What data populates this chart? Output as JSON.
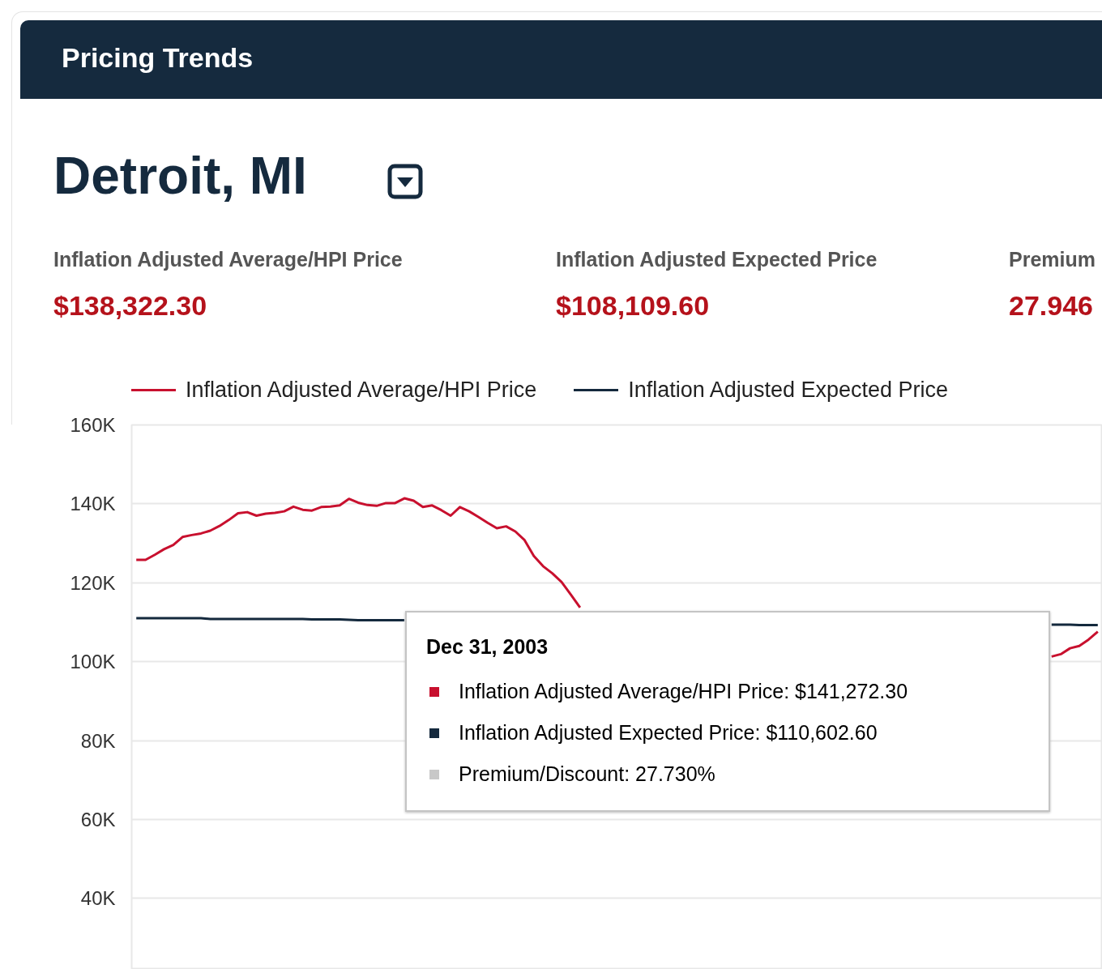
{
  "chart_data": {
    "type": "line",
    "title": "Pricing Trends",
    "subtitle": "Detroit, MI",
    "annotations": [
      "Inflation Adjusted Average/HPI Price",
      "$138,322.30",
      "Inflation Adjusted Expected Price",
      "$108,109.60",
      "Premium",
      "27.946",
      "Dec 31, 2003",
      "Inflation Adjusted Average/HPI Price: $141,272.30",
      "Inflation Adjusted Expected Price: $110,602.60",
      "Premium/Discount: 27.730%"
    ],
    "categories": [
      null,
      null,
      null,
      null,
      null,
      null,
      null,
      null,
      null,
      null,
      null,
      null,
      null,
      null,
      null,
      null,
      null,
      null,
      null,
      null,
      null,
      null,
      null,
      null,
      null,
      null,
      null,
      null,
      null,
      null,
      null,
      null,
      null,
      null,
      null,
      null,
      null,
      null,
      null,
      null,
      null,
      null,
      null,
      null,
      null,
      null,
      null,
      null,
      null,
      null,
      null,
      null,
      null,
      null,
      null,
      null,
      null,
      null,
      null,
      null,
      null,
      null,
      null,
      null,
      null,
      null,
      null,
      null,
      null,
      null,
      null,
      null,
      null,
      null,
      null,
      null,
      null,
      null,
      null,
      null,
      null,
      null,
      null,
      null,
      null,
      null,
      null,
      null,
      null,
      null,
      null,
      null,
      null,
      null,
      null,
      null,
      null,
      null,
      null,
      null,
      null,
      null,
      null,
      null,
      null
    ],
    "series": [
      {
        "name": "Inflation Adjusted Average/HPI Price",
        "color": "#c8102e",
        "values": [
          125800,
          125800,
          127100,
          128500,
          129600,
          131600,
          132100,
          132500,
          133200,
          134400,
          135900,
          137600,
          137900,
          137000,
          137500,
          137700,
          138100,
          139300,
          138500,
          138300,
          139200,
          139300,
          139600,
          141272.3,
          140300,
          139700,
          139500,
          140200,
          140200,
          141400,
          140800,
          139200,
          139600,
          138400,
          137000,
          139200,
          138100,
          136700,
          135200,
          133800,
          134300,
          133000,
          130800,
          126800,
          124200,
          122400,
          120200,
          117000,
          113700,
          null,
          null,
          null,
          null,
          null,
          null,
          null,
          null,
          null,
          null,
          null,
          null,
          null,
          null,
          null,
          null,
          null,
          null,
          null,
          null,
          null,
          null,
          null,
          null,
          null,
          null,
          null,
          null,
          null,
          null,
          null,
          null,
          null,
          null,
          null,
          null,
          null,
          null,
          null,
          null,
          null,
          null,
          null,
          null,
          null,
          null,
          null,
          null,
          null,
          null,
          101300,
          101900,
          103400,
          104000,
          105600,
          107600
        ]
      },
      {
        "name": "Inflation Adjusted Expected Price",
        "color": "#14293d",
        "values": [
          111000,
          111000,
          111000,
          111000,
          111000,
          111000,
          111000,
          111000,
          110800,
          110800,
          110800,
          110800,
          110800,
          110800,
          110800,
          110800,
          110800,
          110800,
          110800,
          110700,
          110700,
          110700,
          110700,
          110602.6,
          110500,
          110500,
          110500,
          110500,
          110500,
          110500,
          null,
          null,
          null,
          null,
          null,
          null,
          null,
          null,
          null,
          null,
          null,
          null,
          null,
          null,
          null,
          null,
          null,
          null,
          null,
          null,
          null,
          null,
          null,
          null,
          null,
          null,
          null,
          null,
          null,
          null,
          null,
          null,
          null,
          null,
          null,
          null,
          null,
          null,
          null,
          null,
          null,
          null,
          null,
          null,
          null,
          null,
          null,
          null,
          null,
          null,
          null,
          null,
          null,
          null,
          null,
          null,
          null,
          null,
          null,
          null,
          null,
          null,
          null,
          null,
          null,
          null,
          null,
          null,
          null,
          109400,
          109400,
          109400,
          109300,
          109300,
          109300
        ]
      }
    ],
    "ylim": [
      22000,
      160000
    ],
    "yticks": [
      {
        "value": 40000,
        "label": "40K"
      },
      {
        "value": 60000,
        "label": "60K"
      },
      {
        "value": 80000,
        "label": "80K"
      },
      {
        "value": 100000,
        "label": "100K"
      },
      {
        "value": 120000,
        "label": "120K"
      },
      {
        "value": 140000,
        "label": "140K"
      },
      {
        "value": 160000,
        "label": "160K"
      }
    ],
    "grid": "y",
    "legend": "top",
    "line_style": "solid"
  }
}
